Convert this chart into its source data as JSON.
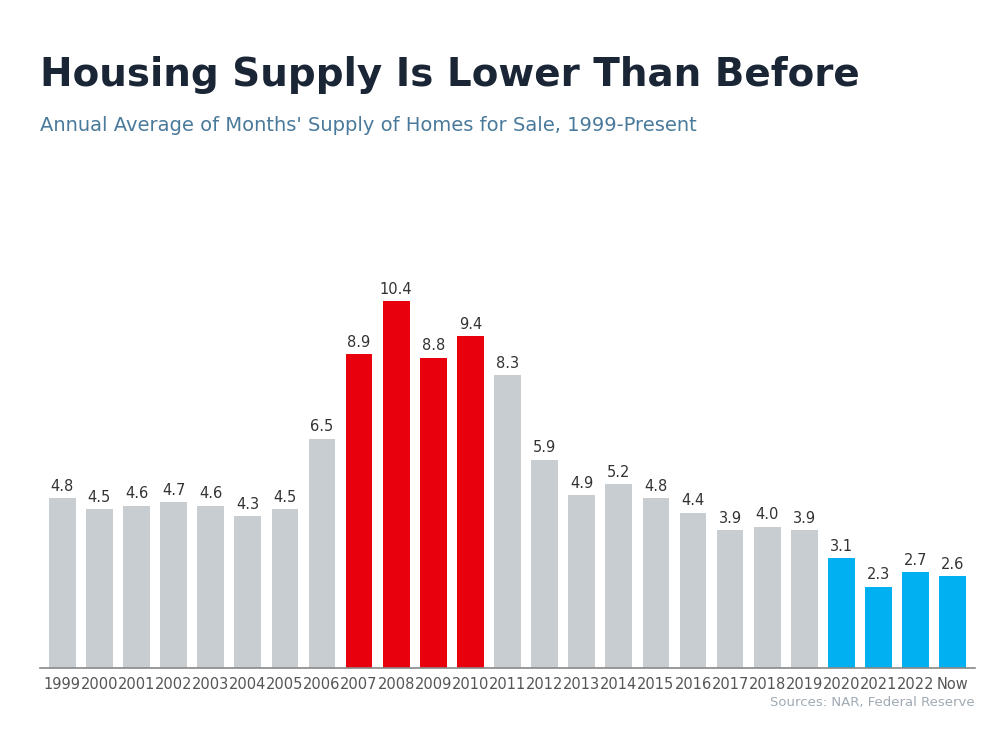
{
  "title": "Housing Supply Is Lower Than Before",
  "subtitle": "Annual Average of Months' Supply of Homes for Sale, 1999-Present",
  "source": "Sources: NAR, Federal Reserve",
  "categories": [
    "1999",
    "2000",
    "2001",
    "2002",
    "2003",
    "2004",
    "2005",
    "2006",
    "2007",
    "2008",
    "2009",
    "2010",
    "2011",
    "2012",
    "2013",
    "2014",
    "2015",
    "2016",
    "2017",
    "2018",
    "2019",
    "2020",
    "2021",
    "2022",
    "Now"
  ],
  "values": [
    4.8,
    4.5,
    4.6,
    4.7,
    4.6,
    4.3,
    4.5,
    6.5,
    8.9,
    10.4,
    8.8,
    9.4,
    8.3,
    5.9,
    4.9,
    5.2,
    4.8,
    4.4,
    3.9,
    4.0,
    3.9,
    3.1,
    2.3,
    2.7,
    2.6
  ],
  "bar_colors": [
    "#c8cdd1",
    "#c8cdd1",
    "#c8cdd1",
    "#c8cdd1",
    "#c8cdd1",
    "#c8cdd1",
    "#c8cdd1",
    "#c8cdd1",
    "#e8000d",
    "#e8000d",
    "#e8000d",
    "#e8000d",
    "#c8cdd1",
    "#c8cdd1",
    "#c8cdd1",
    "#c8cdd1",
    "#c8cdd1",
    "#c8cdd1",
    "#c8cdd1",
    "#c8cdd1",
    "#c8cdd1",
    "#00b0f0",
    "#00b0f0",
    "#00b0f0",
    "#00b0f0"
  ],
  "title_color": "#1a2535",
  "subtitle_color": "#4a7a9b",
  "source_color": "#a0aab4",
  "top_bar_color": "#29abe2",
  "background_color": "#ffffff",
  "label_color": "#333333",
  "ylim": [
    0,
    11.5
  ],
  "title_fontsize": 28,
  "subtitle_fontsize": 14,
  "label_fontsize": 10.5,
  "tick_fontsize": 10.5
}
